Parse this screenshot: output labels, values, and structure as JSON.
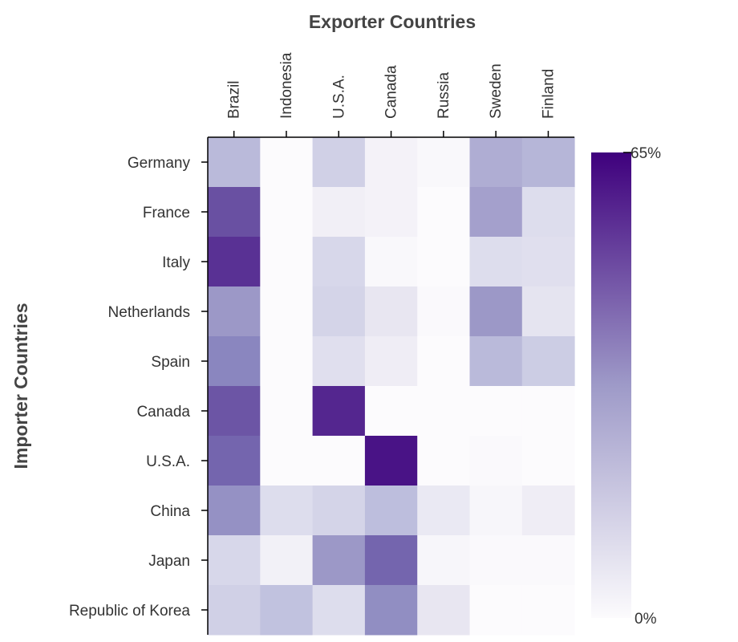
{
  "chart_data": {
    "type": "heatmap",
    "title": "",
    "xlabel": "Exporter Countries",
    "ylabel": "Importer Countries",
    "x_categories": [
      "Brazil",
      "Indonesia",
      "U.S.A.",
      "Canada",
      "Russia",
      "Sweden",
      "Finland"
    ],
    "y_categories": [
      "Germany",
      "France",
      "Italy",
      "Netherlands",
      "Spain",
      "Canada",
      "U.S.A.",
      "China",
      "Japan",
      "Republic of Korea"
    ],
    "values": [
      [
        25,
        0,
        19,
        5,
        2,
        28,
        26
      ],
      [
        49,
        0,
        7,
        5,
        0,
        31,
        15
      ],
      [
        55,
        0,
        17,
        2,
        0,
        15,
        14
      ],
      [
        33,
        0,
        18,
        11,
        1,
        33,
        12
      ],
      [
        38,
        0,
        14,
        8,
        0,
        25,
        20
      ],
      [
        48,
        0,
        57,
        0,
        0,
        0,
        0
      ],
      [
        45,
        0,
        0,
        61,
        0,
        1,
        0
      ],
      [
        35,
        15,
        18,
        24,
        10,
        3,
        8
      ],
      [
        17,
        6,
        33,
        45,
        3,
        1,
        1
      ],
      [
        19,
        23,
        15,
        36,
        11,
        0,
        0
      ]
    ],
    "legend": {
      "min_label": "0%",
      "max_label": "65%",
      "min_value": 0,
      "max_value": 65,
      "color_low": "#fcfbfd",
      "color_high": "#3f007d",
      "placement": "right"
    }
  }
}
